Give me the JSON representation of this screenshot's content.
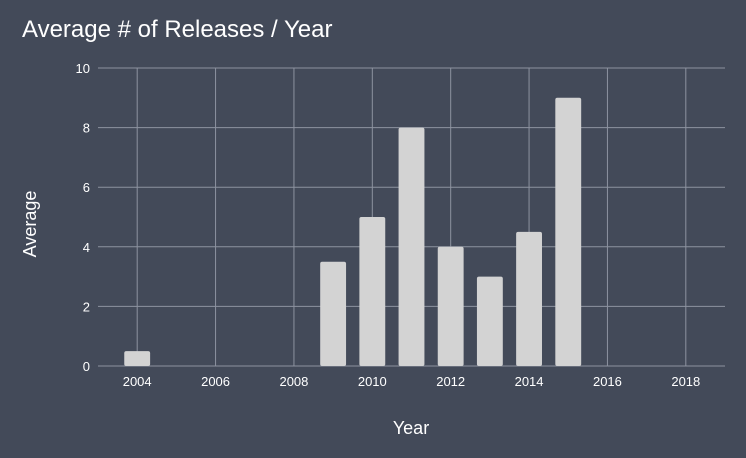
{
  "colors": {
    "background": "#434a59",
    "bar": "#d3d3d3",
    "gridline": "#8d93a0",
    "text": "#ffffff"
  },
  "chart_data": {
    "type": "bar",
    "title": "Average # of Releases / Year",
    "xlabel": "Year",
    "ylabel": "Average",
    "xlim": [
      2003,
      2019
    ],
    "ylim": [
      0,
      10
    ],
    "x_ticks": [
      2004,
      2006,
      2008,
      2010,
      2012,
      2014,
      2016,
      2018
    ],
    "y_ticks": [
      0,
      2,
      4,
      6,
      8,
      10
    ],
    "grid": true,
    "legend": "none",
    "series": [
      {
        "x": [
          2004,
          2009,
          2010,
          2011,
          2012,
          2013,
          2014,
          2015
        ],
        "values": [
          0.5,
          3.5,
          5,
          8,
          4,
          3,
          4.5,
          9
        ]
      }
    ]
  }
}
